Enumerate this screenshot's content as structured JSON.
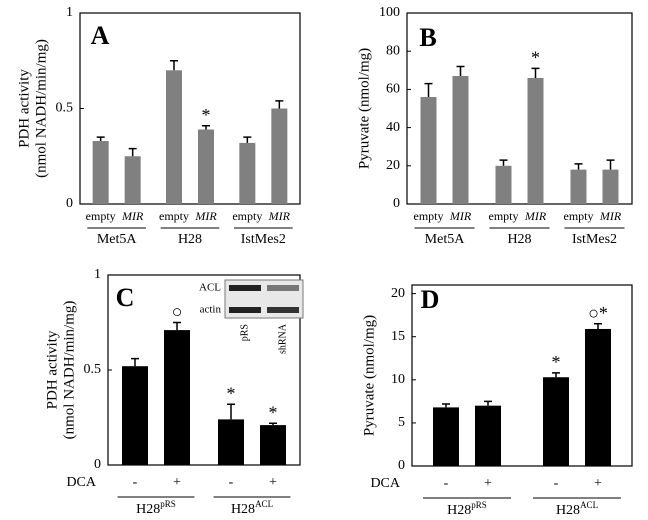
{
  "chart_data": [
    {
      "type": "bar",
      "panel": "A",
      "ylabel": [
        "PDH activity",
        "(nmol NADH/min/mg)"
      ],
      "ylim": [
        0,
        1
      ],
      "yticks": [
        0,
        0.5,
        1
      ],
      "categories": [
        "empty",
        "MIR",
        "empty",
        "MIR",
        "empty",
        "MIR"
      ],
      "groups": [
        "Met5A",
        "H28",
        "IstMes2"
      ],
      "values": [
        0.33,
        0.25,
        0.7,
        0.39,
        0.32,
        0.5
      ],
      "errors": [
        0.02,
        0.04,
        0.05,
        0.02,
        0.03,
        0.04
      ],
      "markers": [
        null,
        null,
        null,
        "*",
        null,
        null
      ],
      "color": "#808080"
    },
    {
      "type": "bar",
      "panel": "B",
      "ylabel": [
        "Pyruvate  (nmol/mg)"
      ],
      "ylim": [
        0,
        100
      ],
      "yticks": [
        0,
        20,
        40,
        60,
        80,
        100
      ],
      "categories": [
        "empty",
        "MIR",
        "empty",
        "MIR",
        "empty",
        "MIR"
      ],
      "groups": [
        "Met5A",
        "H28",
        "IstMes2"
      ],
      "values": [
        56,
        67,
        20,
        66,
        18,
        18
      ],
      "errors": [
        7,
        5,
        3,
        5,
        3,
        5
      ],
      "markers": [
        null,
        null,
        null,
        "*",
        null,
        null
      ],
      "color": "#808080"
    },
    {
      "type": "bar",
      "panel": "C",
      "ylabel": [
        "PDH activity",
        "(nmol NADH/min/mg)"
      ],
      "ylim": [
        0,
        1
      ],
      "yticks": [
        0,
        0.5,
        1
      ],
      "xlabel": "DCA",
      "categories": [
        "-",
        "+",
        "-",
        "+"
      ],
      "groups": [
        {
          "text": "H28",
          "sup": "pRS"
        },
        {
          "text": "H28",
          "sup": "ACL"
        }
      ],
      "values": [
        0.52,
        0.71,
        0.24,
        0.21
      ],
      "errors": [
        0.04,
        0.04,
        0.08,
        0.01
      ],
      "markers": [
        null,
        "○",
        "*",
        "*"
      ],
      "color": "#000000",
      "blot": {
        "rows": [
          "ACL",
          "actin"
        ],
        "lanes": [
          "pRS",
          "shRNA"
        ]
      }
    },
    {
      "type": "bar",
      "panel": "D",
      "ylabel": [
        "Pyruvate  (nmol/mg)"
      ],
      "ylim": [
        0,
        21
      ],
      "yticks": [
        0,
        5,
        10,
        15,
        20
      ],
      "xlabel": "DCA",
      "categories": [
        "-",
        "+",
        "-",
        "+"
      ],
      "groups": [
        {
          "text": "H28",
          "sup": "pRS"
        },
        {
          "text": "H28",
          "sup": "ACL"
        }
      ],
      "values": [
        6.8,
        7.0,
        10.3,
        15.9
      ],
      "errors": [
        0.4,
        0.5,
        0.5,
        0.6
      ],
      "markers": [
        null,
        null,
        "*",
        "○*"
      ],
      "color": "#000000"
    }
  ]
}
